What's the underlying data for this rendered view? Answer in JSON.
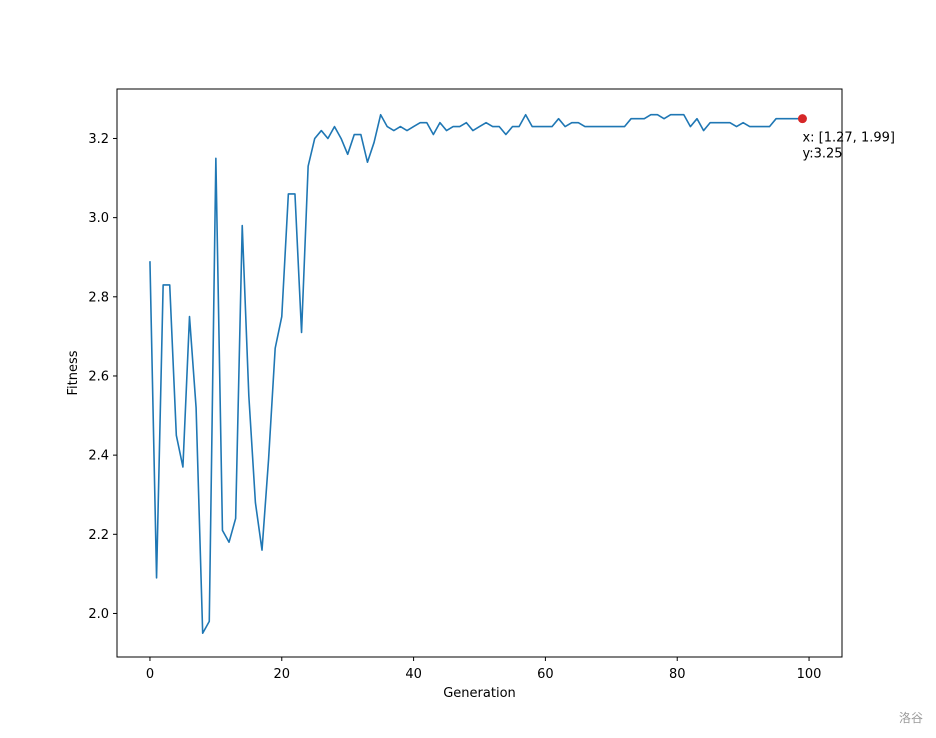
{
  "chart_data": {
    "type": "line",
    "title": "",
    "xlabel": "Generation",
    "ylabel": "Fitness",
    "xlim": [
      -5,
      105
    ],
    "ylim": [
      1.89,
      3.325
    ],
    "xticks": [
      0,
      20,
      40,
      60,
      80,
      100
    ],
    "yticks": [
      2.0,
      2.2,
      2.4,
      2.6,
      2.8,
      3.0,
      3.2
    ],
    "xtick_labels": [
      "0",
      "20",
      "40",
      "60",
      "80",
      "100"
    ],
    "ytick_labels": [
      "2.0",
      "2.2",
      "2.4",
      "2.6",
      "2.8",
      "3.0",
      "3.2"
    ],
    "grid": false,
    "line_color": "#1f77b4",
    "highlight_color": "#d62728",
    "x": [
      0,
      1,
      2,
      3,
      4,
      5,
      6,
      7,
      8,
      9,
      10,
      11,
      12,
      13,
      14,
      15,
      16,
      17,
      18,
      19,
      20,
      21,
      22,
      23,
      24,
      25,
      26,
      27,
      28,
      29,
      30,
      31,
      32,
      33,
      34,
      35,
      36,
      37,
      38,
      39,
      40,
      41,
      42,
      43,
      44,
      45,
      46,
      47,
      48,
      49,
      50,
      51,
      52,
      53,
      54,
      55,
      56,
      57,
      58,
      59,
      60,
      61,
      62,
      63,
      64,
      65,
      66,
      67,
      68,
      69,
      70,
      71,
      72,
      73,
      74,
      75,
      76,
      77,
      78,
      79,
      80,
      81,
      82,
      83,
      84,
      85,
      86,
      87,
      88,
      89,
      90,
      91,
      92,
      93,
      94,
      95,
      96,
      97,
      98,
      99
    ],
    "series": [
      {
        "values": [
          2.89,
          2.09,
          2.83,
          2.83,
          2.45,
          2.37,
          2.75,
          2.52,
          1.95,
          1.98,
          3.15,
          2.21,
          2.18,
          2.24,
          2.98,
          2.55,
          2.28,
          2.16,
          2.39,
          2.67,
          2.75,
          3.06,
          3.06,
          2.71,
          3.13,
          3.2,
          3.22,
          3.2,
          3.23,
          3.2,
          3.16,
          3.21,
          3.21,
          3.14,
          3.19,
          3.26,
          3.23,
          3.22,
          3.23,
          3.22,
          3.23,
          3.24,
          3.24,
          3.21,
          3.24,
          3.22,
          3.23,
          3.23,
          3.24,
          3.22,
          3.23,
          3.24,
          3.23,
          3.23,
          3.21,
          3.23,
          3.23,
          3.26,
          3.23,
          3.23,
          3.23,
          3.23,
          3.25,
          3.23,
          3.24,
          3.24,
          3.23,
          3.23,
          3.23,
          3.23,
          3.23,
          3.23,
          3.23,
          3.25,
          3.25,
          3.25,
          3.26,
          3.26,
          3.25,
          3.26,
          3.26,
          3.26,
          3.23,
          3.25,
          3.22,
          3.24,
          3.24,
          3.24,
          3.24,
          3.23,
          3.24,
          3.23,
          3.23,
          3.23,
          3.23,
          3.25,
          3.25,
          3.25,
          3.25,
          3.25
        ]
      }
    ],
    "highlight": {
      "x": 99,
      "y": 3.25,
      "label_line1": "x: [1.27, 1.99]",
      "label_line2": "y:3.25"
    }
  },
  "watermark": "洛谷"
}
